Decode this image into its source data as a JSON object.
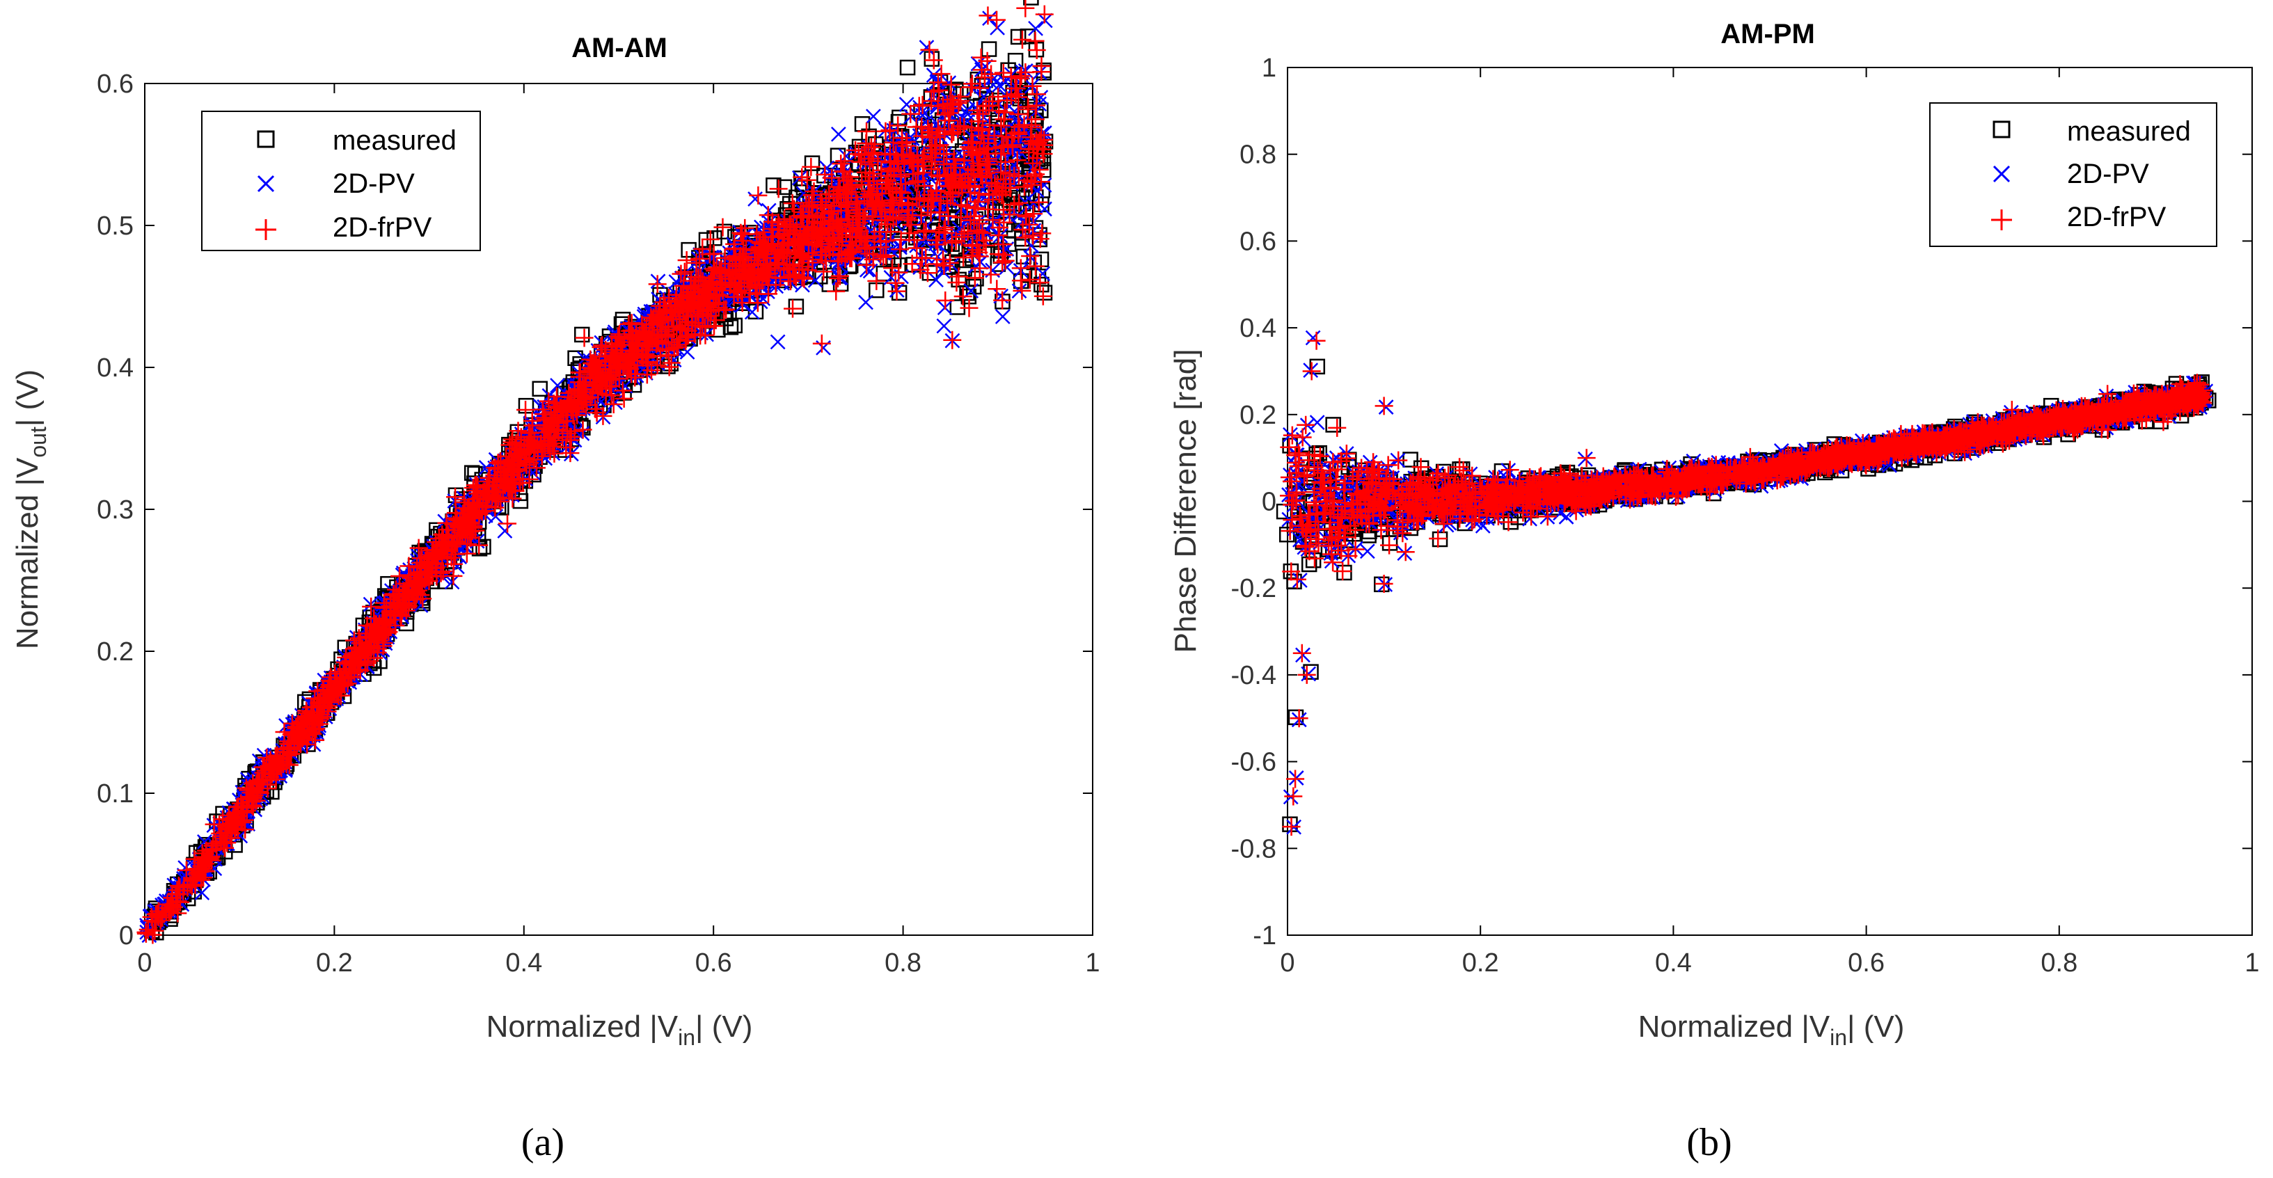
{
  "chart_data": [
    {
      "type": "scatter",
      "title": "AM-AM",
      "xlabel": {
        "prefix": "Normalized |V",
        "sub": "in",
        "suffix": "| (V)"
      },
      "ylabel": {
        "prefix": "Normalized |V",
        "sub": "out",
        "suffix": "| (V)"
      },
      "xlim": [
        0,
        1
      ],
      "ylim": [
        0,
        0.6
      ],
      "xticks": [
        "0",
        "0.2",
        "0.4",
        "0.6",
        "0.8",
        "1"
      ],
      "xtick_values": [
        0,
        0.2,
        0.4,
        0.6,
        0.8,
        1
      ],
      "yticks": [
        "0",
        "0.1",
        "0.2",
        "0.3",
        "0.4",
        "0.5",
        "0.6"
      ],
      "ytick_values": [
        0,
        0.1,
        0.2,
        0.3,
        0.4,
        0.5,
        0.6
      ],
      "legend_position": "top-left",
      "series": [
        {
          "name": "measured",
          "marker": "square",
          "color": "#000000"
        },
        {
          "name": "2D-PV",
          "marker": "x",
          "color": "#0000ff"
        },
        {
          "name": "2D-frPV",
          "marker": "plus",
          "color": "#ff0000"
        }
      ],
      "trend": {
        "x": [
          0,
          0.05,
          0.1,
          0.2,
          0.3,
          0.4,
          0.5,
          0.6,
          0.7,
          0.8,
          0.9,
          0.95
        ],
        "y": [
          0,
          0.04,
          0.085,
          0.175,
          0.26,
          0.34,
          0.405,
          0.455,
          0.495,
          0.525,
          0.545,
          0.55
        ]
      },
      "caption": "(a)"
    },
    {
      "type": "scatter",
      "title": "AM-PM",
      "xlabel": {
        "prefix": "Normalized |V",
        "sub": "in",
        "suffix": "| (V)"
      },
      "ylabel": {
        "prefix": "Phase Difference [rad]",
        "sub": "",
        "suffix": ""
      },
      "xlim": [
        0,
        1
      ],
      "ylim": [
        -1,
        1
      ],
      "xticks": [
        "0",
        "0.2",
        "0.4",
        "0.6",
        "0.8",
        "1"
      ],
      "xtick_values": [
        0,
        0.2,
        0.4,
        0.6,
        0.8,
        1
      ],
      "yticks": [
        "-1",
        "-0.8",
        "-0.6",
        "-0.4",
        "-0.2",
        "0",
        "0.2",
        "0.4",
        "0.6",
        "0.8",
        "1"
      ],
      "ytick_values": [
        -1,
        -0.8,
        -0.6,
        -0.4,
        -0.2,
        0,
        0.2,
        0.4,
        0.6,
        0.8,
        1
      ],
      "legend_position": "top-right",
      "series": [
        {
          "name": "measured",
          "marker": "square",
          "color": "#000000"
        },
        {
          "name": "2D-PV",
          "marker": "x",
          "color": "#0000ff"
        },
        {
          "name": "2D-frPV",
          "marker": "plus",
          "color": "#ff0000"
        }
      ],
      "trend": {
        "x": [
          0,
          0.1,
          0.2,
          0.3,
          0.4,
          0.5,
          0.6,
          0.7,
          0.8,
          0.9,
          0.95
        ],
        "y": [
          0,
          0,
          0.005,
          0.02,
          0.045,
          0.075,
          0.11,
          0.145,
          0.185,
          0.225,
          0.245
        ]
      },
      "outliers": [
        {
          "x": 0.01,
          "y": -0.18
        },
        {
          "x": 0.015,
          "y": -0.35
        },
        {
          "x": 0.012,
          "y": -0.5
        },
        {
          "x": 0.006,
          "y": -0.68
        },
        {
          "x": 0.004,
          "y": -0.75
        },
        {
          "x": 0.008,
          "y": -0.64
        },
        {
          "x": 0.02,
          "y": -0.4
        },
        {
          "x": 0.03,
          "y": 0.37
        },
        {
          "x": 0.025,
          "y": 0.3
        },
        {
          "x": 0.1,
          "y": 0.22
        },
        {
          "x": 0.1,
          "y": -0.19
        },
        {
          "x": 0.31,
          "y": 0.1
        }
      ],
      "caption": "(b)"
    }
  ]
}
